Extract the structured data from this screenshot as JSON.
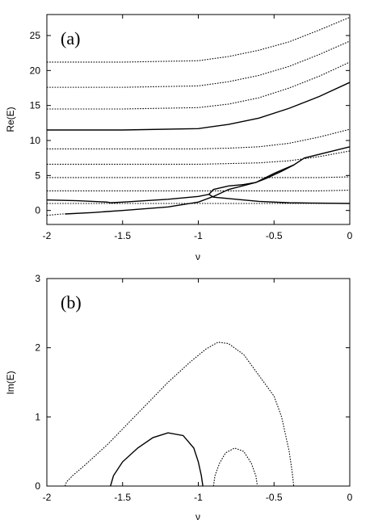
{
  "chart_data": [
    {
      "type": "line",
      "panel_label": "(a)",
      "xlabel": "ν",
      "ylabel": "Re(E)",
      "xlim": [
        -2,
        0
      ],
      "ylim": [
        -2,
        28
      ],
      "xticks": [
        -2,
        -1.5,
        -1,
        -0.5,
        0
      ],
      "xtick_labels": [
        "-2",
        "-1.5",
        "-1",
        "-0.5",
        "0"
      ],
      "yticks": [
        0,
        5,
        10,
        15,
        20,
        25
      ],
      "ytick_labels": [
        "0",
        "5",
        "10",
        "15",
        "20",
        "25"
      ],
      "grid": false,
      "series": [
        {
          "style": "solid",
          "x": [
            -2,
            -1.5,
            -1,
            -0.8,
            -0.6,
            -0.4,
            -0.2,
            0
          ],
          "y": [
            11.5,
            11.5,
            11.7,
            12.3,
            13.2,
            14.6,
            16.3,
            18.3
          ]
        },
        {
          "style": "dotted",
          "x": [
            -2,
            -1.5,
            -1,
            -0.8,
            -0.6,
            -0.4,
            -0.2,
            0
          ],
          "y": [
            1.0,
            1.0,
            1.0,
            1.0,
            1.0,
            1.0,
            1.0,
            1.0
          ]
        },
        {
          "style": "dotted",
          "x": [
            -2,
            -1.5,
            -1,
            -0.8,
            -0.6,
            -0.4,
            -0.2,
            0
          ],
          "y": [
            2.8,
            2.8,
            2.8,
            2.8,
            2.8,
            2.8,
            2.8,
            2.9
          ]
        },
        {
          "style": "dotted",
          "x": [
            -2,
            -1.5,
            -1,
            -0.8,
            -0.6,
            -0.4,
            -0.2,
            0
          ],
          "y": [
            4.7,
            4.7,
            4.7,
            4.7,
            4.7,
            4.7,
            4.7,
            4.8
          ]
        },
        {
          "style": "dotted",
          "x": [
            -2,
            -1.5,
            -1,
            -0.8,
            -0.6,
            -0.4,
            -0.2,
            0
          ],
          "y": [
            6.6,
            6.6,
            6.6,
            6.7,
            6.8,
            7.1,
            7.7,
            8.5
          ]
        },
        {
          "style": "dotted",
          "x": [
            -2,
            -1.5,
            -1,
            -0.8,
            -0.6,
            -0.4,
            -0.2,
            0
          ],
          "y": [
            8.8,
            8.8,
            8.8,
            8.9,
            9.1,
            9.6,
            10.5,
            11.6
          ]
        },
        {
          "style": "dotted",
          "x": [
            -2,
            -1.5,
            -1,
            -0.8,
            -0.6,
            -0.4,
            -0.2,
            0
          ],
          "y": [
            14.5,
            14.5,
            14.7,
            15.2,
            16.1,
            17.5,
            19.2,
            21.2
          ]
        },
        {
          "style": "dotted",
          "x": [
            -2,
            -1.5,
            -1,
            -0.8,
            -0.6,
            -0.4,
            -0.2,
            0
          ],
          "y": [
            17.6,
            17.6,
            17.8,
            18.4,
            19.3,
            20.6,
            22.3,
            24.2
          ]
        },
        {
          "style": "dotted",
          "x": [
            -2,
            -1.5,
            -1,
            -0.8,
            -0.6,
            -0.4,
            -0.2,
            0
          ],
          "y": [
            21.2,
            21.2,
            21.4,
            22.0,
            22.9,
            24.1,
            25.8,
            27.6
          ]
        },
        {
          "style": "solid",
          "x": [
            -2,
            -1.8,
            -1.6,
            -1.58,
            -1.5,
            -1.2,
            -1.0,
            -0.93,
            -0.9,
            -0.6,
            -0.4,
            0
          ],
          "y": [
            1.5,
            1.4,
            1.2,
            1.1,
            1.2,
            1.6,
            2.0,
            2.3,
            1.9,
            1.3,
            1.1,
            1.0
          ]
        },
        {
          "style": "solid",
          "x": [
            -1.88,
            -1.7,
            -1.5,
            -1.2,
            -1.0,
            -0.9,
            -0.8,
            -0.62,
            -0.5,
            -0.37,
            -0.3,
            0
          ],
          "y": [
            -0.5,
            -0.3,
            0.0,
            0.5,
            1.2,
            2.0,
            3.0,
            4.0,
            5.3,
            6.5,
            7.5,
            9.1
          ]
        },
        {
          "style": "solid",
          "x": [
            -0.93,
            -0.9,
            -0.8,
            -0.7,
            -0.62,
            -0.55,
            -0.45,
            -0.37
          ],
          "y": [
            2.3,
            3.0,
            3.5,
            3.7,
            4.0,
            4.6,
            5.6,
            6.5
          ]
        },
        {
          "style": "dotted",
          "x": [
            -2,
            -1.95,
            -1.9,
            -1.88
          ],
          "y": [
            -0.7,
            -0.6,
            -0.5,
            -0.5
          ]
        }
      ]
    },
    {
      "type": "line",
      "panel_label": "(b)",
      "xlabel": "ν",
      "ylabel": "Im(E)",
      "xlim": [
        -2,
        0
      ],
      "ylim": [
        0,
        3
      ],
      "xticks": [
        -2,
        -1.5,
        -1,
        -0.5,
        0
      ],
      "xtick_labels": [
        "-2",
        "-1.5",
        "-1",
        "-0.5",
        "0"
      ],
      "yticks": [
        0,
        1,
        2,
        3
      ],
      "ytick_labels": [
        "0",
        "1",
        "2",
        "3"
      ],
      "grid": false,
      "series": [
        {
          "style": "dotted",
          "x": [
            -1.88,
            -1.87,
            -1.83,
            -1.75,
            -1.6,
            -1.4,
            -1.2,
            -1.05,
            -0.95,
            -0.87,
            -0.8,
            -0.7,
            -0.6,
            -0.5,
            -0.45,
            -0.4,
            -0.38,
            -0.37
          ],
          "y": [
            0.0,
            0.06,
            0.15,
            0.3,
            0.6,
            1.05,
            1.5,
            1.8,
            1.98,
            2.08,
            2.06,
            1.9,
            1.6,
            1.3,
            1.0,
            0.5,
            0.2,
            0.0
          ]
        },
        {
          "style": "solid",
          "x": [
            -1.58,
            -1.56,
            -1.5,
            -1.4,
            -1.3,
            -1.2,
            -1.1,
            -1.03,
            -1.0,
            -0.98,
            -0.97
          ],
          "y": [
            0.0,
            0.15,
            0.35,
            0.55,
            0.7,
            0.77,
            0.73,
            0.55,
            0.35,
            0.15,
            0.0
          ]
        },
        {
          "style": "dotted",
          "x": [
            -0.9,
            -0.89,
            -0.86,
            -0.82,
            -0.76,
            -0.7,
            -0.65,
            -0.62,
            -0.61
          ],
          "y": [
            0.0,
            0.15,
            0.33,
            0.48,
            0.55,
            0.5,
            0.33,
            0.15,
            0.0
          ]
        }
      ]
    }
  ]
}
